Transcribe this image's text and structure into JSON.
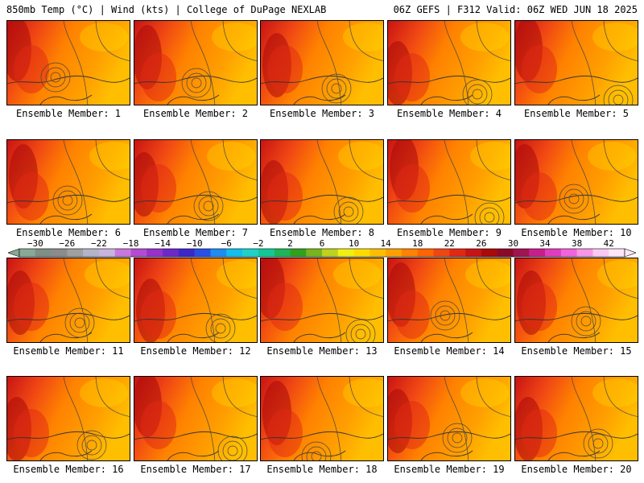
{
  "header": {
    "left": "850mb Temp (°C) | Wind (kts) | College of DuPage NEXLAB",
    "right": "06Z GEFS | F312 Valid: 06Z WED JUN 18 2025"
  },
  "panels": [
    {
      "label": "Ensemble Member: 1"
    },
    {
      "label": "Ensemble Member: 2"
    },
    {
      "label": "Ensemble Member: 3"
    },
    {
      "label": "Ensemble Member: 4"
    },
    {
      "label": "Ensemble Member: 5"
    },
    {
      "label": "Ensemble Member: 6"
    },
    {
      "label": "Ensemble Member: 7"
    },
    {
      "label": "Ensemble Member: 8"
    },
    {
      "label": "Ensemble Member: 9"
    },
    {
      "label": "Ensemble Member: 10"
    },
    {
      "label": "Ensemble Member: 11"
    },
    {
      "label": "Ensemble Member: 12"
    },
    {
      "label": "Ensemble Member: 13"
    },
    {
      "label": "Ensemble Member: 14"
    },
    {
      "label": "Ensemble Member: 15"
    },
    {
      "label": "Ensemble Member: 16"
    },
    {
      "label": "Ensemble Member: 17"
    },
    {
      "label": "Ensemble Member: 18"
    },
    {
      "label": "Ensemble Member: 19"
    },
    {
      "label": "Ensemble Member: 20"
    }
  ],
  "colorbar": {
    "ticks": [
      "−30",
      "−26",
      "−22",
      "−18",
      "−14",
      "−10",
      "−6",
      "−2",
      "2",
      "6",
      "10",
      "14",
      "18",
      "22",
      "26",
      "30",
      "34",
      "38",
      "42"
    ],
    "range": [
      -32,
      44
    ],
    "colors": [
      "#8aa896",
      "#7e8f86",
      "#8c8c8c",
      "#a0a0a0",
      "#b4b4c8",
      "#c8b4dc",
      "#c878dc",
      "#b44bd2",
      "#9632c8",
      "#6e28c8",
      "#3c28c8",
      "#2850e6",
      "#1e8cf0",
      "#14beeb",
      "#1ed2c8",
      "#14c896",
      "#1eb45a",
      "#32a01e",
      "#78b41e",
      "#bed21e",
      "#f0f014",
      "#ffdc00",
      "#ffbe00",
      "#ffa000",
      "#ff8200",
      "#ff6400",
      "#f04614",
      "#e12814",
      "#c81414",
      "#aa0a0a",
      "#8c0a28",
      "#a01450",
      "#c81e8c",
      "#e13cbe",
      "#f064dc",
      "#f596e6",
      "#fac8f0",
      "#fde6f8"
    ]
  },
  "chart_data": {
    "type": "heatmap",
    "title": "850mb Temp (°C) | Wind (kts)",
    "units": "°C",
    "panels": [
      "Ensemble Member: 1",
      "Ensemble Member: 2",
      "Ensemble Member: 3",
      "Ensemble Member: 4",
      "Ensemble Member: 5",
      "Ensemble Member: 6",
      "Ensemble Member: 7",
      "Ensemble Member: 8",
      "Ensemble Member: 9",
      "Ensemble Member: 10",
      "Ensemble Member: 11",
      "Ensemble Member: 12",
      "Ensemble Member: 13",
      "Ensemble Member: 14",
      "Ensemble Member: 15",
      "Ensemble Member: 16",
      "Ensemble Member: 17",
      "Ensemble Member: 18",
      "Ensemble Member: 19",
      "Ensemble Member: 20"
    ],
    "colorbar_ticks": [
      -30,
      -26,
      -22,
      -18,
      -14,
      -10,
      -6,
      -2,
      2,
      6,
      10,
      14,
      18,
      22,
      26,
      30,
      34,
      38,
      42
    ]
  }
}
